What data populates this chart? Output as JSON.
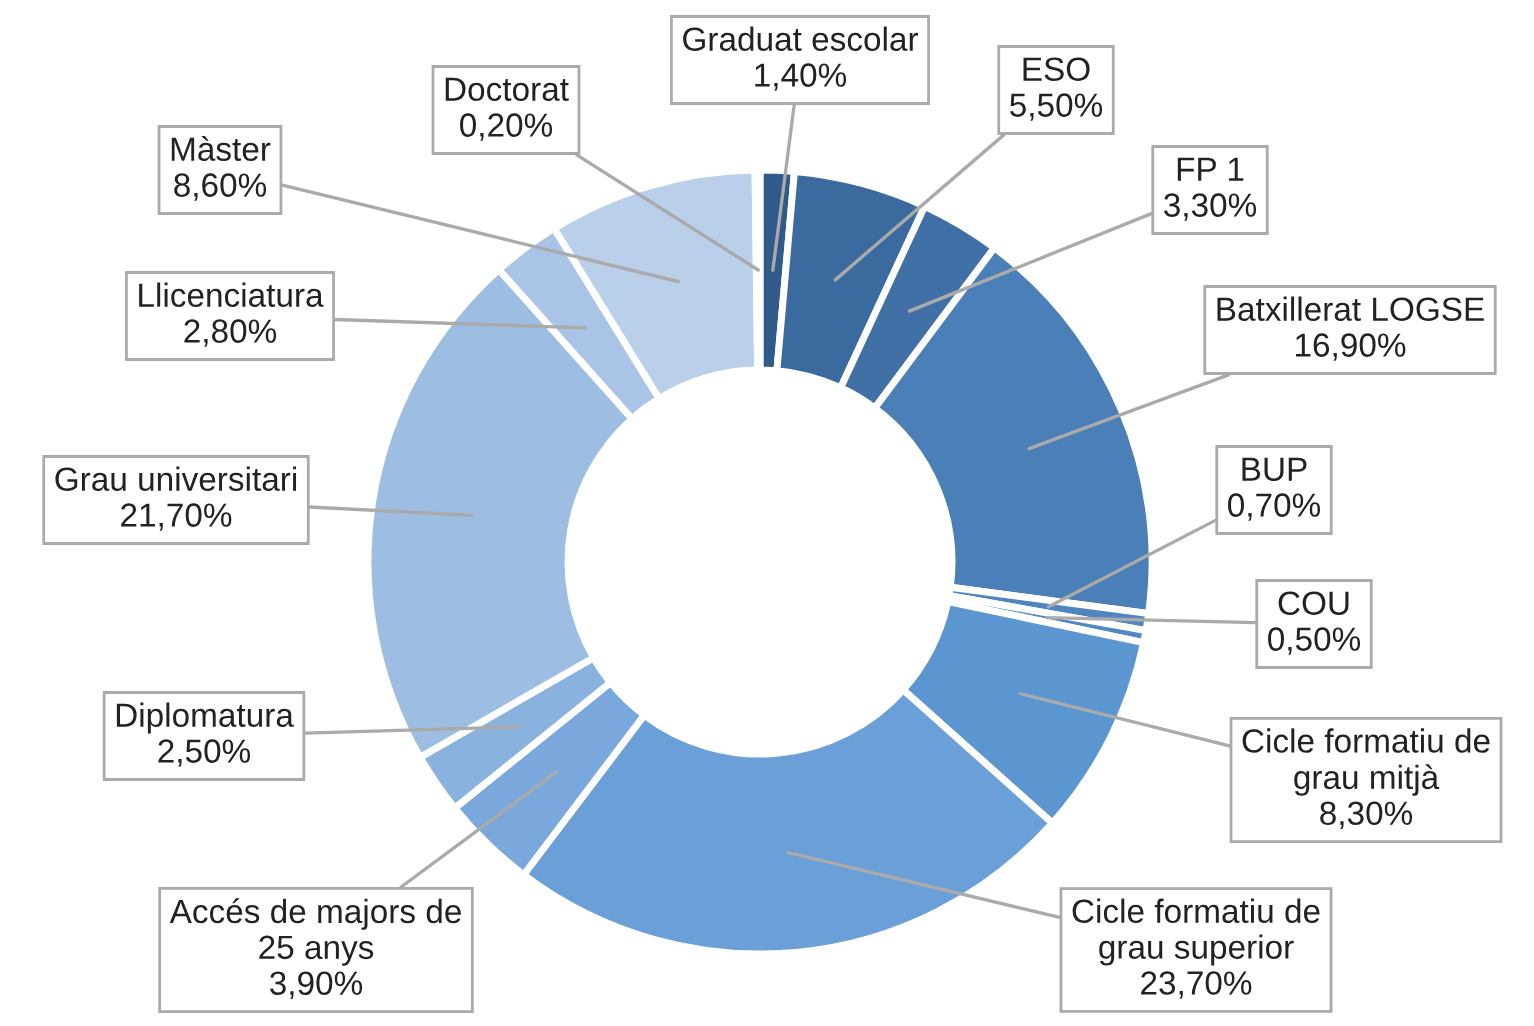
{
  "chart_data": {
    "type": "donut",
    "categories": [
      "Graduat escolar",
      "ESO",
      "FP 1",
      "Batxillerat LOGSE",
      "BUP",
      "COU",
      "Cicle formatiu de\ngrau mitjà",
      "Cicle formatiu de\ngrau superior",
      "Accés de majors de\n25 anys",
      "Diplomatura",
      "Grau universitari",
      "Llicenciatura",
      "Màster",
      "Doctorat"
    ],
    "values": [
      1.4,
      5.5,
      3.3,
      16.9,
      0.7,
      0.5,
      8.3,
      23.7,
      3.9,
      2.5,
      21.7,
      2.8,
      8.6,
      0.2
    ],
    "value_labels": [
      "1,40%",
      "5,50%",
      "3,30%",
      "16,90%",
      "0,70%",
      "0,50%",
      "8,30%",
      "23,70%",
      "3,90%",
      "2,50%",
      "21,70%",
      "2,80%",
      "8,60%",
      "0,20%"
    ],
    "colors": [
      "#2f5a8a",
      "#3b6a9e",
      "#4070a6",
      "#4a7fb8",
      "#4f86c0",
      "#5289c4",
      "#5b96d0",
      "#6a9fd8",
      "#7aa8dc",
      "#8ab2de",
      "#9dbde3",
      "#a9c4e6",
      "#b9cfea",
      "#c4d6ee"
    ]
  }
}
